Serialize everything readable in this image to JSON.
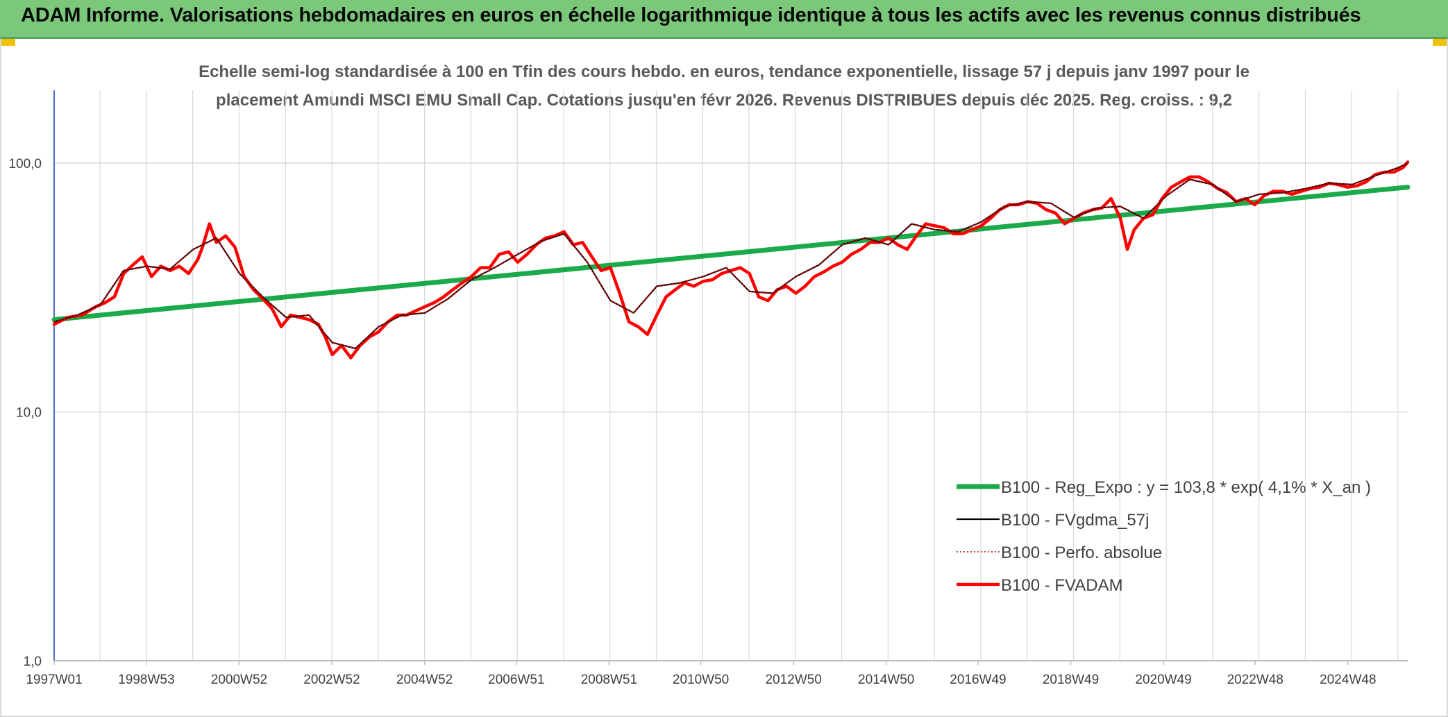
{
  "banner": {
    "title": "ADAM Informe. Valorisations hebdomadaires en euros en échelle logarithmique identique à tous les actifs avec les revenus connus distribués"
  },
  "colors": {
    "banner_bg": "#7bc87b",
    "trend": "#1aaa4a",
    "smooth": "#000000",
    "perf": "#c00000",
    "fvadam": "#ff0000",
    "grid": "#d9d9d9"
  },
  "chart_data": {
    "type": "line",
    "title_lines": [
      "Echelle semi-log standardisée à 100 en Tfin des cours hebdo. en euros, tendance exponentielle, lissage 57 j depuis janv 1997 pour le",
      "placement Amundi MSCI EMU Small Cap. Cotations jusqu'en févr 2026. Revenus DISTRIBUES depuis déc 2025. Reg. croiss. : 9,2"
    ],
    "y_scale": "log",
    "ylim": [
      1,
      200
    ],
    "y_ticks": [
      {
        "value": 1,
        "label": "1,0"
      },
      {
        "value": 10,
        "label": "10,0"
      },
      {
        "value": 100,
        "label": "100,0"
      }
    ],
    "xlim": [
      1997.0,
      2026.2
    ],
    "x_ticks": [
      {
        "year": 1997.0,
        "label": "1997W01"
      },
      {
        "year": 1998.99,
        "label": "1998W53"
      },
      {
        "year": 2000.99,
        "label": "2000W52"
      },
      {
        "year": 2002.99,
        "label": "2002W52"
      },
      {
        "year": 2004.99,
        "label": "2004W52"
      },
      {
        "year": 2006.97,
        "label": "2006W51"
      },
      {
        "year": 2008.97,
        "label": "2008W51"
      },
      {
        "year": 2010.95,
        "label": "2010W50"
      },
      {
        "year": 2012.95,
        "label": "2012W50"
      },
      {
        "year": 2014.95,
        "label": "2014W50"
      },
      {
        "year": 2016.93,
        "label": "2016W49"
      },
      {
        "year": 2018.93,
        "label": "2018W49"
      },
      {
        "year": 2020.93,
        "label": "2020W49"
      },
      {
        "year": 2022.91,
        "label": "2022W48"
      },
      {
        "year": 2024.91,
        "label": "2024W48"
      }
    ],
    "grid": true,
    "legend_position": "bottom-right",
    "series": [
      {
        "name": "B100 - Reg_Expo : y = 103,8 * exp( 4,1% *  X_an )",
        "style": "trend",
        "x": [
          1997.0,
          2026.2
        ],
        "y": [
          23.5,
          80.0
        ]
      },
      {
        "name": "B100 - FVgdma_57j",
        "style": "smooth",
        "x": [
          1997.0,
          1997.5,
          1998.0,
          1998.5,
          1999.0,
          1999.5,
          2000.0,
          2000.5,
          2001.0,
          2001.5,
          2002.0,
          2002.5,
          2003.0,
          2003.5,
          2004.0,
          2004.5,
          2005.0,
          2005.5,
          2006.0,
          2006.5,
          2007.0,
          2007.5,
          2008.0,
          2008.5,
          2009.0,
          2009.5,
          2010.0,
          2010.5,
          2011.0,
          2011.5,
          2012.0,
          2012.5,
          2013.0,
          2013.5,
          2014.0,
          2014.5,
          2015.0,
          2015.5,
          2016.0,
          2016.5,
          2017.0,
          2017.5,
          2018.0,
          2018.5,
          2019.0,
          2019.5,
          2020.0,
          2020.5,
          2021.0,
          2021.5,
          2022.0,
          2022.5,
          2023.0,
          2023.5,
          2024.0,
          2024.5,
          2025.0,
          2025.5,
          2026.0,
          2026.2
        ],
        "y": [
          23.0,
          24.5,
          27.0,
          37.0,
          38.5,
          37.5,
          45.0,
          50.0,
          36.0,
          29.0,
          24.0,
          24.5,
          19.0,
          18.0,
          22.0,
          24.5,
          25.0,
          28.5,
          34.0,
          38.0,
          43.0,
          48.5,
          52.0,
          40.0,
          28.0,
          25.0,
          32.0,
          33.0,
          35.0,
          38.0,
          30.5,
          30.0,
          35.0,
          39.0,
          47.0,
          50.0,
          47.0,
          57.0,
          54.0,
          53.0,
          58.0,
          67.0,
          70.0,
          69.0,
          60.5,
          66.0,
          67.0,
          60.0,
          74.0,
          86.0,
          82.0,
          70.0,
          75.0,
          76.0,
          79.0,
          83.0,
          82.0,
          89.0,
          96.0,
          100.0
        ]
      },
      {
        "name": "B100 - Perfo. absolue",
        "style": "perf",
        "x": [
          1997.0,
          1997.5,
          1998.0,
          1998.5,
          1999.0,
          1999.5,
          2000.0,
          2000.5,
          2001.0,
          2001.5,
          2002.0,
          2002.5,
          2003.0,
          2003.5,
          2004.0,
          2004.5,
          2005.0,
          2005.5,
          2006.0,
          2006.5,
          2007.0,
          2007.5,
          2008.0,
          2008.5,
          2009.0,
          2009.5,
          2010.0,
          2010.5,
          2011.0,
          2011.5,
          2012.0,
          2012.5,
          2013.0,
          2013.5,
          2014.0,
          2014.5,
          2015.0,
          2015.5,
          2016.0,
          2016.5,
          2017.0,
          2017.5,
          2018.0,
          2018.5,
          2019.0,
          2019.5,
          2020.0,
          2020.5,
          2021.0,
          2021.5,
          2022.0,
          2022.5,
          2023.0,
          2023.5,
          2024.0,
          2024.5,
          2025.0,
          2025.5,
          2026.0,
          2026.2
        ],
        "y": [
          23.0,
          24.5,
          27.0,
          37.0,
          38.5,
          37.5,
          45.0,
          50.0,
          36.0,
          29.0,
          24.0,
          24.5,
          19.0,
          18.0,
          22.0,
          24.5,
          25.0,
          28.5,
          34.0,
          38.0,
          43.0,
          48.5,
          52.0,
          40.0,
          28.0,
          25.0,
          32.0,
          33.0,
          35.0,
          38.0,
          30.5,
          30.0,
          35.0,
          39.0,
          47.0,
          50.0,
          47.0,
          57.0,
          54.0,
          53.0,
          58.0,
          67.0,
          70.0,
          69.0,
          60.5,
          66.0,
          67.0,
          60.0,
          74.0,
          86.0,
          82.0,
          70.0,
          75.0,
          76.0,
          79.0,
          83.0,
          82.0,
          89.0,
          96.0,
          100.0
        ]
      },
      {
        "name": "B100 - FVADAM",
        "style": "fvadam",
        "x": [
          1997.0,
          1997.3,
          1997.6,
          1997.9,
          1998.1,
          1998.3,
          1998.5,
          1998.7,
          1998.9,
          1999.1,
          1999.3,
          1999.5,
          1999.7,
          1999.9,
          2000.1,
          2000.2,
          2000.35,
          2000.5,
          2000.7,
          2000.9,
          2001.1,
          2001.3,
          2001.5,
          2001.7,
          2001.9,
          2002.1,
          2002.3,
          2002.5,
          2002.7,
          2002.85,
          2003.0,
          2003.2,
          2003.4,
          2003.6,
          2003.8,
          2004.0,
          2004.2,
          2004.4,
          2004.6,
          2004.8,
          2005.0,
          2005.2,
          2005.4,
          2005.6,
          2005.8,
          2006.0,
          2006.2,
          2006.4,
          2006.6,
          2006.8,
          2007.0,
          2007.2,
          2007.4,
          2007.6,
          2007.8,
          2008.0,
          2008.2,
          2008.4,
          2008.6,
          2008.8,
          2009.0,
          2009.2,
          2009.4,
          2009.6,
          2009.8,
          2010.0,
          2010.2,
          2010.4,
          2010.6,
          2010.8,
          2011.0,
          2011.2,
          2011.4,
          2011.6,
          2011.8,
          2012.0,
          2012.2,
          2012.4,
          2012.6,
          2012.8,
          2013.0,
          2013.2,
          2013.4,
          2013.6,
          2013.8,
          2014.0,
          2014.2,
          2014.4,
          2014.6,
          2014.8,
          2015.0,
          2015.2,
          2015.4,
          2015.6,
          2015.8,
          2016.0,
          2016.2,
          2016.4,
          2016.6,
          2016.8,
          2017.0,
          2017.2,
          2017.4,
          2017.6,
          2017.8,
          2018.0,
          2018.2,
          2018.4,
          2018.6,
          2018.8,
          2019.0,
          2019.2,
          2019.4,
          2019.6,
          2019.8,
          2020.0,
          2020.15,
          2020.3,
          2020.5,
          2020.7,
          2020.9,
          2021.1,
          2021.3,
          2021.5,
          2021.7,
          2021.9,
          2022.1,
          2022.3,
          2022.5,
          2022.7,
          2022.9,
          2023.1,
          2023.3,
          2023.5,
          2023.7,
          2023.9,
          2024.1,
          2024.3,
          2024.5,
          2024.7,
          2024.9,
          2025.1,
          2025.3,
          2025.5,
          2025.7,
          2025.9,
          2026.1,
          2026.2
        ],
        "y": [
          22.5,
          24.0,
          24.5,
          26.5,
          27.5,
          29.0,
          36.0,
          39.0,
          42.0,
          35.0,
          38.5,
          37.0,
          38.5,
          36.0,
          41.0,
          46.0,
          57.0,
          48.0,
          51.0,
          46.0,
          35.0,
          31.0,
          28.5,
          26.0,
          22.0,
          24.5,
          24.0,
          23.5,
          22.5,
          20.0,
          17.0,
          18.5,
          16.5,
          18.5,
          20.0,
          21.0,
          23.0,
          24.5,
          24.5,
          25.5,
          26.5,
          27.5,
          29.0,
          31.0,
          33.0,
          35.0,
          38.0,
          38.0,
          43.0,
          44.0,
          40.0,
          43.0,
          47.0,
          50.0,
          51.0,
          53.0,
          47.0,
          48.0,
          42.0,
          37.0,
          38.0,
          30.0,
          23.0,
          22.0,
          20.5,
          24.5,
          29.0,
          31.0,
          33.0,
          32.0,
          33.5,
          34.0,
          36.0,
          37.0,
          38.0,
          36.0,
          29.0,
          28.0,
          31.0,
          32.0,
          30.0,
          32.0,
          35.0,
          36.5,
          38.5,
          40.0,
          43.0,
          45.0,
          48.0,
          48.0,
          50.0,
          47.0,
          45.0,
          51.0,
          57.0,
          56.0,
          55.0,
          52.0,
          52.0,
          54.0,
          56.0,
          60.0,
          65.0,
          68.0,
          68.0,
          70.0,
          69.0,
          65.0,
          63.0,
          57.0,
          60.0,
          63.0,
          65.0,
          66.0,
          72.0,
          60.0,
          45.0,
          54.0,
          60.0,
          62.0,
          72.0,
          80.0,
          84.0,
          88.0,
          88.0,
          84.0,
          79.0,
          76.0,
          70.0,
          72.0,
          68.0,
          74.0,
          77.0,
          77.0,
          75.0,
          77.0,
          79.0,
          80.0,
          83.0,
          82.0,
          80.0,
          81.0,
          84.0,
          90.0,
          92.0,
          92.0,
          96.0,
          101.0
        ]
      }
    ]
  }
}
